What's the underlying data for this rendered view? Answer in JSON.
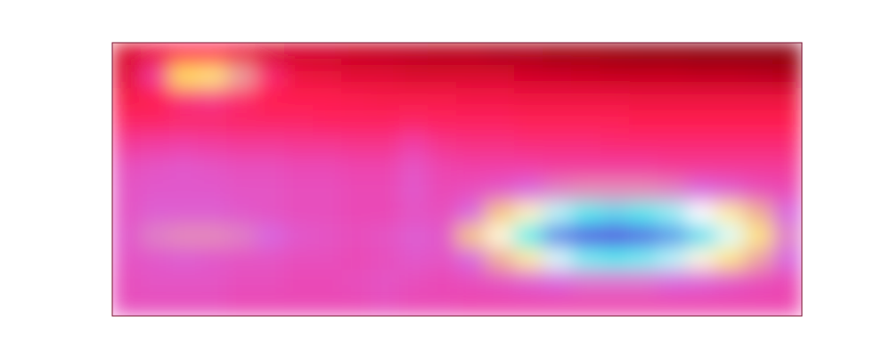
{
  "chart_data": {
    "type": "heatmap",
    "tick_labels": false,
    "zlim": [
      0,
      1
    ],
    "cells": [
      [
        0.2,
        0.25,
        0.3,
        0.3,
        0.25,
        0.2,
        0.18,
        0.17,
        0.15,
        0.14,
        0.13,
        0.12,
        0.12,
        0.1,
        0.1,
        0.08,
        0.08,
        0.07,
        0.06,
        0.06,
        0.05,
        0.05,
        0.05,
        0.05
      ],
      [
        0.22,
        0.4,
        0.6,
        0.62,
        0.55,
        0.35,
        0.25,
        0.24,
        0.22,
        0.22,
        0.2,
        0.2,
        0.2,
        0.2,
        0.18,
        0.17,
        0.16,
        0.15,
        0.15,
        0.15,
        0.14,
        0.14,
        0.13,
        0.12
      ],
      [
        0.28,
        0.3,
        0.36,
        0.38,
        0.34,
        0.3,
        0.3,
        0.3,
        0.29,
        0.28,
        0.28,
        0.28,
        0.27,
        0.27,
        0.26,
        0.26,
        0.26,
        0.26,
        0.25,
        0.25,
        0.25,
        0.25,
        0.25,
        0.25
      ],
      [
        0.33,
        0.33,
        0.34,
        0.34,
        0.33,
        0.33,
        0.33,
        0.32,
        0.32,
        0.32,
        0.33,
        0.32,
        0.32,
        0.32,
        0.31,
        0.31,
        0.31,
        0.31,
        0.3,
        0.3,
        0.3,
        0.3,
        0.3,
        0.3
      ],
      [
        0.4,
        0.41,
        0.42,
        0.41,
        0.4,
        0.4,
        0.39,
        0.39,
        0.38,
        0.38,
        0.42,
        0.38,
        0.37,
        0.37,
        0.36,
        0.36,
        0.36,
        0.35,
        0.35,
        0.35,
        0.35,
        0.35,
        0.35,
        0.35
      ],
      [
        0.45,
        0.46,
        0.47,
        0.46,
        0.45,
        0.45,
        0.44,
        0.44,
        0.43,
        0.43,
        0.46,
        0.43,
        0.42,
        0.42,
        0.42,
        0.41,
        0.41,
        0.41,
        0.41,
        0.4,
        0.4,
        0.4,
        0.4,
        0.4
      ],
      [
        0.46,
        0.47,
        0.47,
        0.47,
        0.46,
        0.46,
        0.45,
        0.45,
        0.44,
        0.44,
        0.47,
        0.44,
        0.45,
        0.47,
        0.5,
        0.52,
        0.53,
        0.53,
        0.53,
        0.52,
        0.5,
        0.48,
        0.45,
        0.44
      ],
      [
        0.46,
        0.48,
        0.48,
        0.48,
        0.47,
        0.46,
        0.45,
        0.45,
        0.44,
        0.44,
        0.46,
        0.45,
        0.5,
        0.58,
        0.66,
        0.74,
        0.8,
        0.82,
        0.8,
        0.76,
        0.7,
        0.64,
        0.56,
        0.5
      ],
      [
        0.47,
        0.52,
        0.53,
        0.53,
        0.52,
        0.5,
        0.47,
        0.46,
        0.45,
        0.46,
        0.48,
        0.47,
        0.58,
        0.68,
        0.8,
        0.92,
        0.98,
        1.0,
        0.96,
        0.9,
        0.82,
        0.72,
        0.62,
        0.52
      ],
      [
        0.46,
        0.47,
        0.48,
        0.47,
        0.46,
        0.46,
        0.45,
        0.45,
        0.44,
        0.45,
        0.47,
        0.46,
        0.5,
        0.56,
        0.64,
        0.72,
        0.78,
        0.8,
        0.78,
        0.74,
        0.68,
        0.62,
        0.55,
        0.5
      ],
      [
        0.45,
        0.46,
        0.46,
        0.46,
        0.45,
        0.45,
        0.44,
        0.44,
        0.45,
        0.46,
        0.45,
        0.44,
        0.45,
        0.46,
        0.48,
        0.5,
        0.51,
        0.51,
        0.51,
        0.5,
        0.49,
        0.47,
        0.45,
        0.44
      ],
      [
        0.45,
        0.45,
        0.45,
        0.45,
        0.44,
        0.44,
        0.44,
        0.44,
        0.44,
        0.45,
        0.44,
        0.44,
        0.43,
        0.43,
        0.43,
        0.43,
        0.43,
        0.43,
        0.43,
        0.43,
        0.43,
        0.43,
        0.43,
        0.43
      ]
    ]
  }
}
